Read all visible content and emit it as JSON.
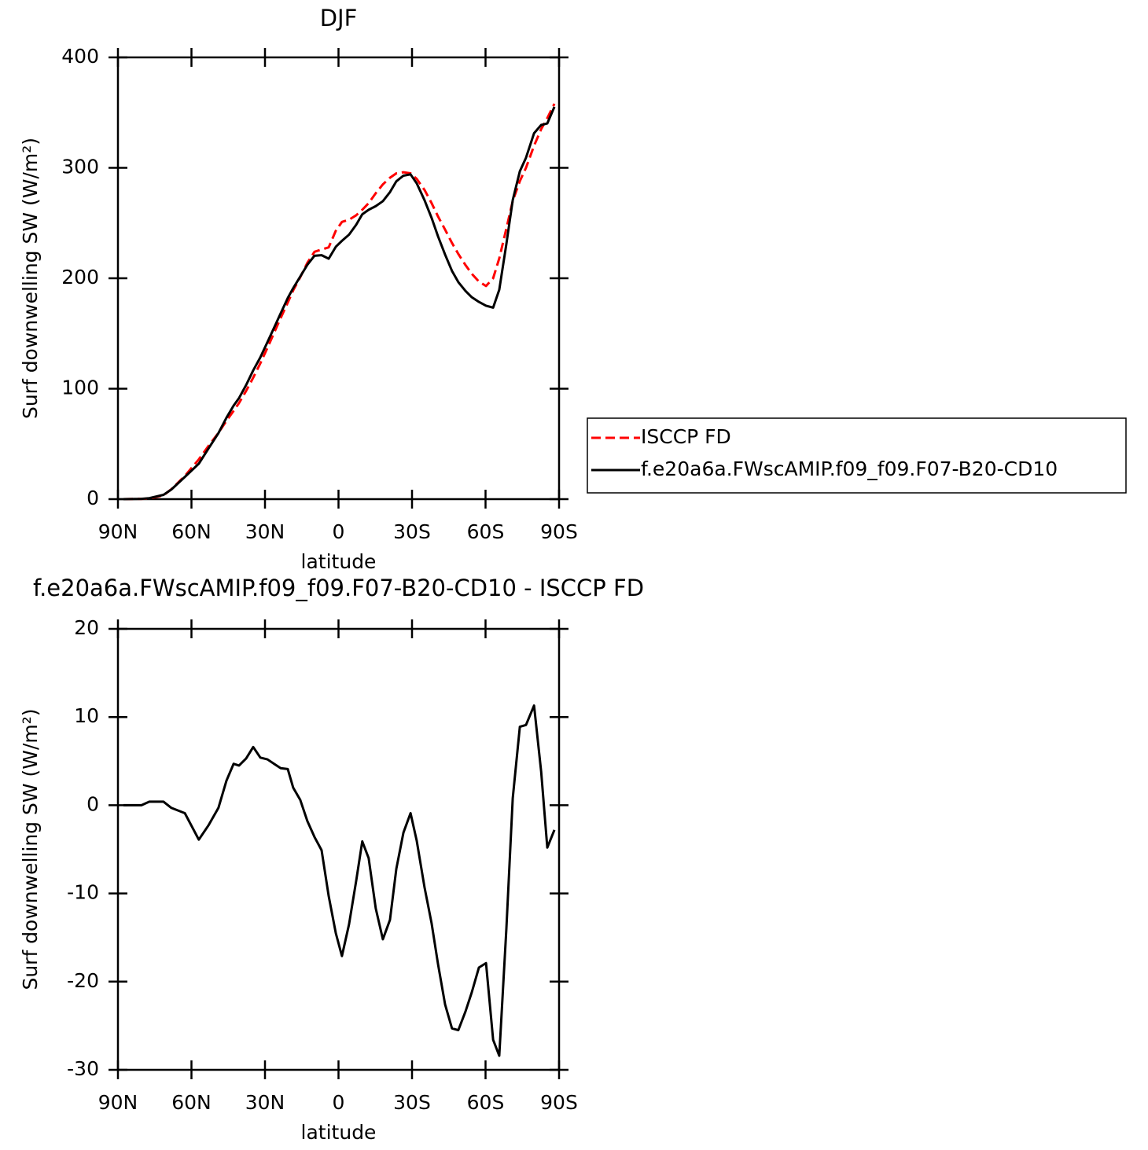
{
  "chart_data": [
    {
      "type": "line",
      "title": "DJF",
      "xlabel": "latitude",
      "ylabel": "Surf downwelling SW (W/m²)",
      "xlim": [
        90,
        -90
      ],
      "xticks": [
        {
          "value": 90,
          "label": "90N"
        },
        {
          "value": 60,
          "label": "60N"
        },
        {
          "value": 30,
          "label": "30N"
        },
        0,
        {
          "value": -30,
          "label": "30S"
        },
        {
          "value": -60,
          "label": "60S"
        },
        {
          "value": -90,
          "label": "90S"
        }
      ],
      "ylim": [
        0,
        400
      ],
      "yticks": [
        0,
        100,
        200,
        300,
        400
      ],
      "legend": "right",
      "x": [
        87.75,
        80.4,
        77.2,
        71.4,
        68.2,
        62.7,
        57,
        53.1,
        49,
        45.7,
        42.8,
        40.6,
        37.7,
        34.8,
        31.9,
        29,
        25.8,
        23.6,
        20.7,
        18.5,
        15.6,
        12.7,
        9.8,
        6.9,
        4,
        1.1,
        -1.4,
        -4.3,
        -7.2,
        -9.7,
        -12.3,
        -15.2,
        -18.1,
        -21,
        -23.6,
        -26.5,
        -29.4,
        -31.9,
        -35.1,
        -38,
        -40.6,
        -43.5,
        -46.3,
        -48.9,
        -51.8,
        -54.4,
        -57.3,
        -60.2,
        -63.1,
        -65.6,
        -68.5,
        -71.1,
        -74,
        -76.5,
        -79.8,
        -82.7,
        -85.2,
        -88.1
      ],
      "series": [
        {
          "name": "ISCCP FD",
          "color": "#ff0000",
          "linestyle": "dashed",
          "values": [
            0,
            0.3,
            0.5,
            3.5,
            9,
            21,
            36,
            48,
            60,
            71,
            80,
            87,
            98,
            110,
            123,
            137,
            153,
            164,
            178,
            189,
            201,
            214,
            224,
            226,
            228,
            243,
            251,
            253,
            257,
            262,
            268,
            277,
            285,
            291,
            295,
            296,
            295,
            290,
            280,
            268,
            256,
            244,
            232,
            222,
            212,
            204,
            197,
            193,
            200,
            218,
            245,
            270,
            288,
            300,
            320,
            335,
            345,
            358
          ]
        },
        {
          "name": "f.e20a6a.FWscAMIP.f09_f09.F07-B20-CD10",
          "color": "#000000",
          "linestyle": "solid",
          "values": [
            0,
            0.3,
            0.9,
            3.9,
            8.7,
            20.1,
            32.1,
            45.7,
            59.7,
            73.8,
            84.7,
            91.5,
            103.3,
            116.6,
            128.4,
            142.2,
            157.6,
            168.2,
            182.1,
            191,
            201.6,
            212.2,
            220.4,
            220.9,
            217.7,
            228.5,
            233.9,
            239.5,
            248.4,
            257.9,
            262,
            265.3,
            269.8,
            278,
            287.8,
            292.9,
            294.1,
            286,
            270.7,
            254.6,
            238,
            221.4,
            206.7,
            196.5,
            188.6,
            182.8,
            178.6,
            175.1,
            173.4,
            189.6,
            231,
            270.8,
            296.9,
            309.1,
            331.3,
            338.8,
            340.2,
            355.2
          ]
        }
      ]
    },
    {
      "type": "line",
      "title": "f.e20a6a.FWscAMIP.f09_f09.F07-B20-CD10 - ISCCP FD",
      "xlabel": "latitude",
      "ylabel": "Surf downwelling SW (W/m²)",
      "xlim": [
        90,
        -90
      ],
      "xticks": [
        {
          "value": 90,
          "label": "90N"
        },
        {
          "value": 60,
          "label": "60N"
        },
        {
          "value": 30,
          "label": "30N"
        },
        0,
        {
          "value": -30,
          "label": "30S"
        },
        {
          "value": -60,
          "label": "60S"
        },
        {
          "value": -90,
          "label": "90S"
        }
      ],
      "ylim": [
        -30,
        20
      ],
      "yticks": [
        -30,
        -20,
        -10,
        0,
        10,
        20
      ],
      "color": "#000000",
      "linestyle": "solid",
      "x": [
        87.75,
        80.4,
        77.2,
        71.4,
        68.2,
        62.7,
        57,
        53.1,
        49,
        45.7,
        42.8,
        40.6,
        37.7,
        34.8,
        31.9,
        29,
        25.8,
        23.6,
        20.7,
        18.5,
        15.6,
        12.7,
        9.8,
        6.9,
        4,
        1.1,
        -1.4,
        -4.3,
        -7.2,
        -9.7,
        -12.3,
        -15.2,
        -18.1,
        -21,
        -23.6,
        -26.5,
        -29.4,
        -31.9,
        -35.1,
        -38,
        -40.6,
        -43.5,
        -46.3,
        -48.9,
        -51.8,
        -54.4,
        -57.3,
        -60.2,
        -63.1,
        -65.6,
        -68.5,
        -71.1,
        -74,
        -76.5,
        -79.8,
        -82.7,
        -85.2,
        -88.1
      ],
      "values": [
        0,
        0,
        0.4,
        0.4,
        -0.3,
        -0.9,
        -3.9,
        -2.3,
        -0.3,
        2.8,
        4.7,
        4.5,
        5.3,
        6.6,
        5.4,
        5.2,
        4.6,
        4.2,
        4.1,
        2,
        0.6,
        -1.8,
        -3.6,
        -5.1,
        -10.3,
        -14.5,
        -17.1,
        -13.5,
        -8.6,
        -4.1,
        -6,
        -11.7,
        -15.2,
        -13,
        -7.2,
        -3.1,
        -0.9,
        -4,
        -9.3,
        -13.4,
        -18,
        -22.6,
        -25.3,
        -25.5,
        -23.4,
        -21.2,
        -18.4,
        -17.9,
        -26.6,
        -28.4,
        -14,
        0.8,
        8.9,
        9.1,
        11.3,
        3.8,
        -4.8,
        -2.8
      ]
    }
  ]
}
